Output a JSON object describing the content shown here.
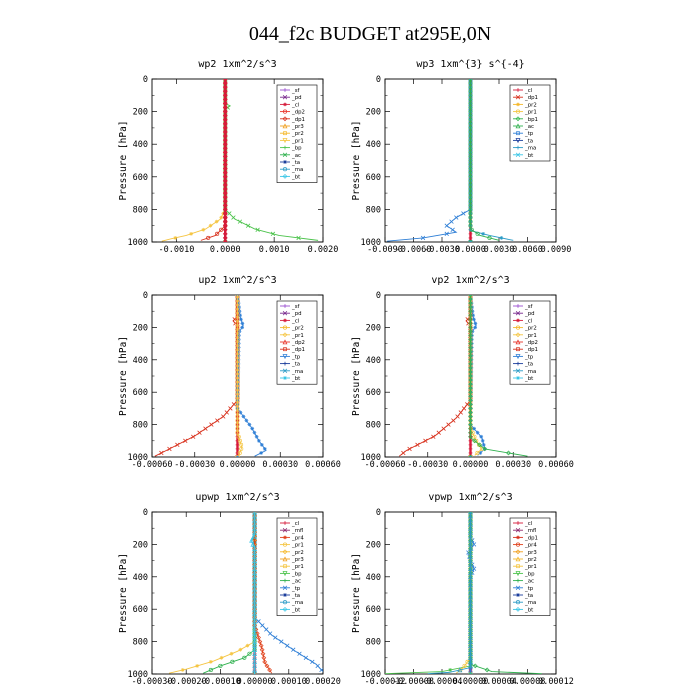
{
  "figure": {
    "title": "044_f2c  BUDGET at295E,0N"
  },
  "chart_data": [
    {
      "type": "line",
      "title": "wp2   1xm^2/s^3",
      "ylabel": "Pressure [hPa]",
      "ylim": [
        1000,
        0
      ],
      "xlim": [
        -0.0015,
        0.002
      ],
      "xticks": [
        -0.001,
        0.0,
        0.001,
        0.002
      ],
      "xtick_labels": [
        "-0.0010",
        "0.0000",
        "0.0010",
        "0.0020"
      ],
      "yticks": [
        0,
        200,
        400,
        600,
        800,
        1000
      ],
      "legend": [
        "_sf",
        "_pd",
        "_cl",
        "_dp2",
        "_dp1",
        "_pr3",
        "_pr2",
        "_pr1",
        "_bp",
        "_ac",
        "_ta",
        "_ma",
        "_bt"
      ],
      "legend_position": "top-right",
      "series": [
        {
          "name": "_pd",
          "values": [
            [
              0,
              0
            ],
            [
              0,
              1000
            ]
          ]
        },
        {
          "name": "_bp",
          "values": [
            [
              0,
              0
            ],
            [
              0,
              150
            ],
            [
              0.0001,
              165
            ],
            [
              0,
              185
            ],
            [
              0,
              800
            ],
            [
              0.0002,
              860
            ],
            [
              0.0006,
              920
            ],
            [
              0.0011,
              960
            ],
            [
              0.0019,
              990
            ]
          ]
        },
        {
          "name": "_pr1",
          "values": [
            [
              0,
              0
            ],
            [
              0,
              800
            ],
            [
              -0.0001,
              860
            ],
            [
              -0.0004,
              920
            ],
            [
              -0.0008,
              960
            ],
            [
              -0.0011,
              980
            ],
            [
              -0.0013,
              995
            ]
          ]
        },
        {
          "name": "_dp1",
          "values": [
            [
              0,
              0
            ],
            [
              0,
              900
            ],
            [
              -0.0002,
              960
            ],
            [
              -0.0005,
              990
            ]
          ]
        },
        {
          "name": "_cl",
          "values": [
            [
              0,
              0
            ],
            [
              0,
              1000
            ]
          ]
        }
      ]
    },
    {
      "type": "line",
      "title": "wp3   1xm^{3} s^{-4}",
      "ylabel": "Pressure [hPa]",
      "ylim": [
        1000,
        0
      ],
      "xlim": [
        -0.009,
        0.009
      ],
      "xticks": [
        -0.009,
        -0.006,
        -0.003,
        0.0,
        0.003,
        0.006,
        0.009
      ],
      "xtick_labels": [
        "-0.0090",
        "-0.0060",
        "-0.0030",
        "0.0000",
        "0.0030",
        "0.0060",
        "0.0090"
      ],
      "yticks": [
        0,
        200,
        400,
        600,
        800,
        1000
      ],
      "legend": [
        "_cl",
        "_dp1",
        "_pr2",
        "_pr1",
        "_bp1",
        "_ac",
        "_tp",
        "_ta",
        "_ma",
        "_bt"
      ],
      "legend_position": "top-right",
      "series": [
        {
          "name": "_cl",
          "values": [
            [
              0,
              0
            ],
            [
              0,
              1000
            ]
          ]
        },
        {
          "name": "_tp",
          "values": [
            [
              0,
              0
            ],
            [
              0,
              800
            ],
            [
              -0.0015,
              850
            ],
            [
              -0.0025,
              900
            ],
            [
              -0.0015,
              940
            ],
            [
              -0.005,
              975
            ],
            [
              -0.0088,
              995
            ]
          ]
        },
        {
          "name": "_ma",
          "values": [
            [
              0,
              0
            ],
            [
              0,
              930
            ],
            [
              0.002,
              960
            ],
            [
              0.0045,
              990
            ]
          ]
        },
        {
          "name": "_ac",
          "values": [
            [
              0,
              0
            ],
            [
              0,
              920
            ],
            [
              0.001,
              960
            ],
            [
              0.003,
              990
            ]
          ]
        }
      ]
    },
    {
      "type": "line",
      "title": "up2   1xm^2/s^3",
      "ylabel": "Pressure [hPa]",
      "ylim": [
        1000,
        0
      ],
      "xlim": [
        -0.0006,
        0.0006
      ],
      "xticks": [
        -0.0006,
        -0.0003,
        0.0,
        0.0003,
        0.0006
      ],
      "xtick_labels": [
        "-0.00060",
        "-0.00030",
        "0.00000",
        "0.00030",
        "0.00060"
      ],
      "yticks": [
        0,
        200,
        400,
        600,
        800,
        1000
      ],
      "legend": [
        "_sf",
        "_pd",
        "_cl",
        "_pr2",
        "_pr1",
        "_dp2",
        "_dp1",
        "_tp",
        "_ta",
        "_ma",
        "_bt"
      ],
      "legend_position": "top-right",
      "series": [
        {
          "name": "_cl",
          "values": [
            [
              0,
              0
            ],
            [
              0,
              1000
            ]
          ]
        },
        {
          "name": "_dp1",
          "values": [
            [
              0,
              0
            ],
            [
              0,
              130
            ],
            [
              -3e-05,
              160
            ],
            [
              0,
              190
            ],
            [
              0,
              650
            ],
            [
              -0.0001,
              750
            ],
            [
              -0.0003,
              870
            ],
            [
              -0.0005,
              960
            ],
            [
              -0.00058,
              995
            ]
          ]
        },
        {
          "name": "_tp",
          "values": [
            [
              0,
              0
            ],
            [
              2e-05,
              140
            ],
            [
              4e-05,
              190
            ],
            [
              1e-05,
              230
            ],
            [
              0,
              700
            ],
            [
              0.0001,
              820
            ],
            [
              0.00015,
              900
            ],
            [
              0.0002,
              960
            ],
            [
              0.00012,
              995
            ]
          ]
        },
        {
          "name": "_pr1",
          "values": [
            [
              0,
              0
            ],
            [
              0,
              850
            ],
            [
              3e-05,
              940
            ],
            [
              1e-05,
              990
            ]
          ]
        }
      ]
    },
    {
      "type": "line",
      "title": "vp2   1xm^2/s^3",
      "ylabel": "Pressure [hPa]",
      "ylim": [
        1000,
        0
      ],
      "xlim": [
        -0.0006,
        0.0006
      ],
      "xticks": [
        -0.0006,
        -0.0003,
        0.0,
        0.0003,
        0.0006
      ],
      "xtick_labels": [
        "-0.00060",
        "-0.00030",
        "0.00000",
        "0.00030",
        "0.00060"
      ],
      "yticks": [
        0,
        200,
        400,
        600,
        800,
        1000
      ],
      "legend": [
        "_sf",
        "_pd",
        "_cl",
        "_pr2",
        "_pr1",
        "_dp2",
        "_dp1",
        "_tp",
        "_ta",
        "_ma",
        "_bt"
      ],
      "legend_position": "top-right",
      "series": [
        {
          "name": "_cl",
          "values": [
            [
              0,
              0
            ],
            [
              0,
              1000
            ]
          ]
        },
        {
          "name": "_dp1",
          "values": [
            [
              0,
              0
            ],
            [
              0,
              130
            ],
            [
              -3e-05,
              160
            ],
            [
              0,
              190
            ],
            [
              0,
              650
            ],
            [
              -0.0001,
              760
            ],
            [
              -0.00025,
              870
            ],
            [
              -0.00045,
              960
            ],
            [
              -0.0005,
              995
            ]
          ]
        },
        {
          "name": "_tp",
          "values": [
            [
              0,
              0
            ],
            [
              2e-05,
              140
            ],
            [
              4e-05,
              190
            ],
            [
              1e-05,
              230
            ],
            [
              0,
              800
            ],
            [
              8e-05,
              880
            ],
            [
              0.0001,
              950
            ],
            [
              5e-05,
              990
            ]
          ]
        },
        {
          "name": "_pr1",
          "values": [
            [
              0,
              0
            ],
            [
              0,
              820
            ],
            [
              4e-05,
              900
            ],
            [
              8e-05,
              950
            ],
            [
              3e-05,
              990
            ]
          ]
        },
        {
          "name": "_ac",
          "values": [
            [
              0,
              0
            ],
            [
              0,
              880
            ],
            [
              0.0001,
              950
            ],
            [
              0.0004,
              995
            ]
          ]
        }
      ]
    },
    {
      "type": "line",
      "title": "upwp   1xm^2/s^3",
      "ylabel": "Pressure [hPa]",
      "ylim": [
        1000,
        0
      ],
      "xlim": [
        -0.0003,
        0.0002
      ],
      "xticks": [
        -0.0003,
        -0.0002,
        -0.0001,
        0.0,
        0.0001,
        0.0002
      ],
      "xtick_labels": [
        "-0.00030",
        "-0.00020",
        "-0.00010",
        "0.00000",
        "0.00010",
        "0.00020"
      ],
      "yticks": [
        0,
        200,
        400,
        600,
        800,
        1000
      ],
      "legend": [
        "_cl",
        "_mfl",
        "_pr4",
        "_pr1",
        "_pr2",
        "_pr3",
        "_pr1",
        "_bp",
        "_ac",
        "_tp",
        "_ta",
        "_ma",
        "_bt"
      ],
      "legend_position": "top-right",
      "series": [
        {
          "name": "_cl",
          "values": [
            [
              0,
              0
            ],
            [
              0,
              1000
            ]
          ]
        },
        {
          "name": "_tp",
          "values": [
            [
              0,
              0
            ],
            [
              0,
              650
            ],
            [
              5e-05,
              760
            ],
            [
              0.00012,
              860
            ],
            [
              0.00018,
              940
            ],
            [
              0.0002,
              985
            ]
          ]
        },
        {
          "name": "_pr1",
          "values": [
            [
              0,
              0
            ],
            [
              0,
              800
            ],
            [
              -5e-05,
              860
            ],
            [
              -0.00012,
              920
            ],
            [
              -0.0002,
              970
            ],
            [
              -0.00025,
              995
            ]
          ]
        },
        {
          "name": "_ac",
          "values": [
            [
              0,
              0
            ],
            [
              0,
              850
            ],
            [
              -3e-05,
              900
            ],
            [
              -0.0001,
              950
            ],
            [
              -0.00015,
              995
            ]
          ]
        },
        {
          "name": "_pr4",
          "values": [
            [
              0,
              0
            ],
            [
              0,
              700
            ],
            [
              2e-05,
              830
            ],
            [
              3e-05,
              930
            ],
            [
              5e-05,
              995
            ]
          ]
        },
        {
          "name": "_bt",
          "values": [
            [
              0,
              0
            ],
            [
              0,
              140
            ],
            [
              -1e-05,
              180
            ],
            [
              0,
              220
            ],
            [
              0,
              1000
            ]
          ]
        }
      ]
    },
    {
      "type": "line",
      "title": "vpwp   1xm^2/s^3",
      "ylabel": "Pressure [hPa]",
      "ylim": [
        1000,
        0
      ],
      "xlim": [
        -0.00012,
        0.00012
      ],
      "xticks": [
        -0.00012,
        -8e-05,
        -4e-05,
        0.0,
        4e-05,
        8e-05,
        0.00012
      ],
      "xtick_labels": [
        "-0.00012",
        "-0.00008",
        "-0.00004",
        "0.00000",
        "0.00004",
        "0.00008",
        "0.00012"
      ],
      "yticks": [
        0,
        200,
        400,
        600,
        800,
        1000
      ],
      "legend": [
        "_cl",
        "_mfl",
        "_dp1",
        "_pr4",
        "_pr3",
        "_pr2",
        "_pr1",
        "_bp",
        "_ac",
        "_tp",
        "_ta",
        "_ma",
        "_bt"
      ],
      "legend_position": "top-right",
      "series": [
        {
          "name": "_cl",
          "values": [
            [
              0,
              0
            ],
            [
              0,
              1000
            ]
          ]
        },
        {
          "name": "_tp",
          "values": [
            [
              0,
              0
            ],
            [
              0,
              150
            ],
            [
              5e-06,
              200
            ],
            [
              -3e-06,
              250
            ],
            [
              0,
              300
            ],
            [
              5e-06,
              350
            ],
            [
              0,
              400
            ],
            [
              0,
              1000
            ]
          ]
        },
        {
          "name": "_bp",
          "values": [
            [
              0,
              0
            ],
            [
              0,
              950
            ],
            [
              -4e-05,
              985
            ],
            [
              -0.00012,
              998
            ]
          ]
        },
        {
          "name": "_pr1",
          "values": [
            [
              0,
              0
            ],
            [
              0,
              900
            ],
            [
              -1e-05,
              960
            ],
            [
              -2e-05,
              995
            ]
          ]
        },
        {
          "name": "_ac",
          "values": [
            [
              0,
              0
            ],
            [
              0,
              940
            ],
            [
              3e-05,
              985
            ],
            [
              0.0001,
              998
            ]
          ]
        },
        {
          "name": "_ma",
          "values": [
            [
              0,
              0
            ],
            [
              0,
              960
            ],
            [
              -3e-05,
              990
            ],
            [
              -6e-05,
              998
            ]
          ]
        }
      ]
    }
  ]
}
